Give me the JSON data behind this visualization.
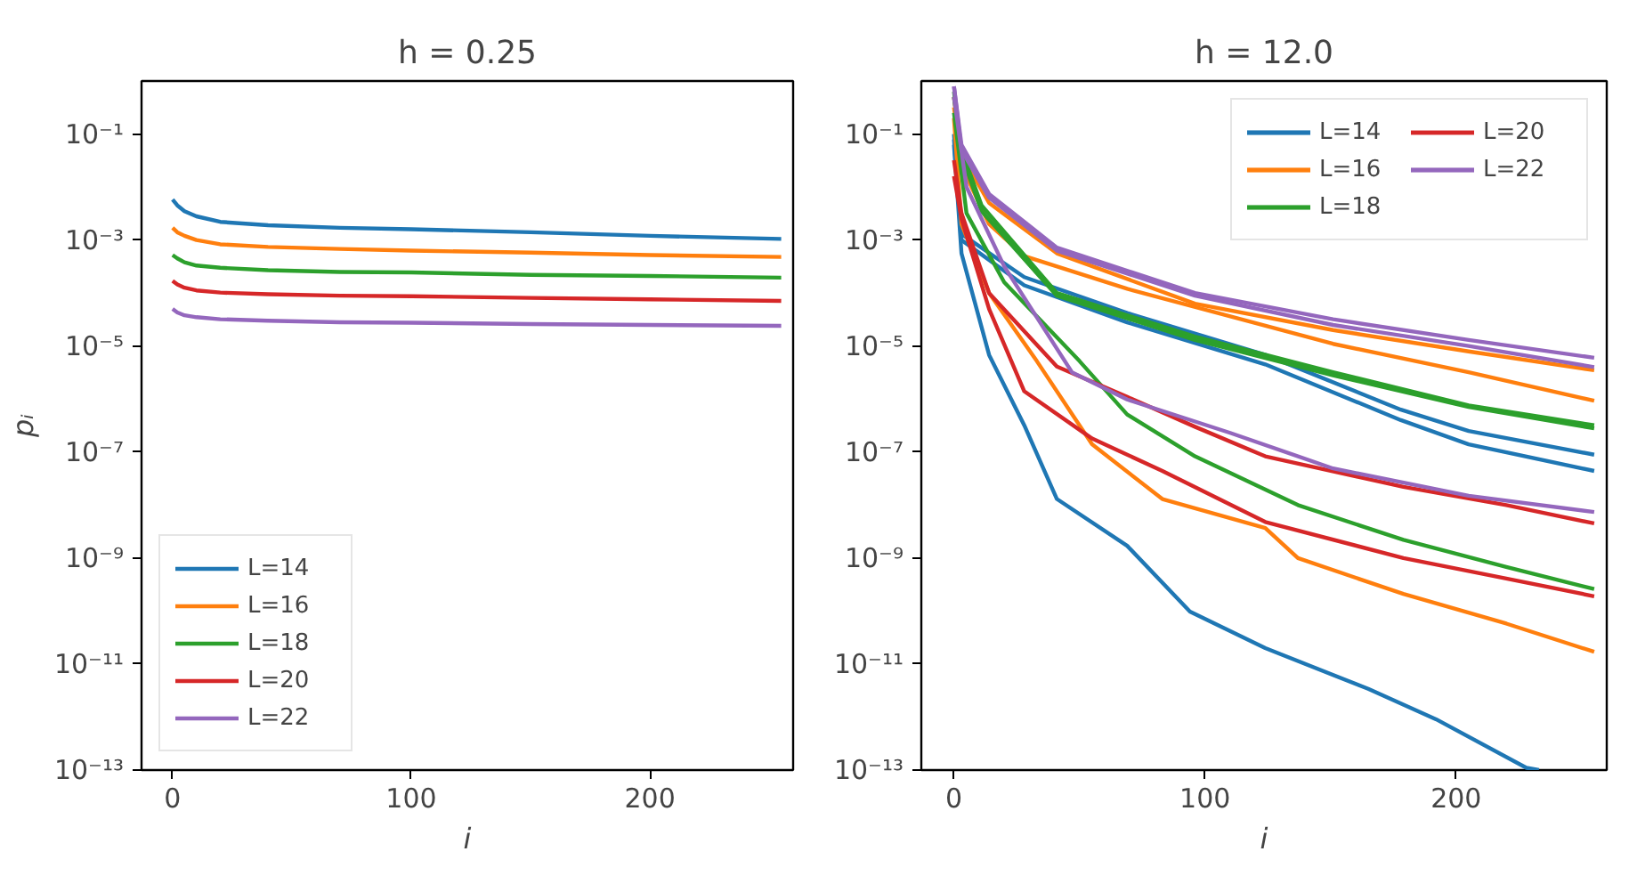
{
  "chart_data": [
    {
      "type": "line",
      "title": "h = 0.25",
      "xlabel": "i",
      "ylabel": "pᵢ",
      "log": "y",
      "grid": false,
      "legend": "bottom left",
      "xlim": [
        -13,
        260
      ],
      "xticks": [
        0,
        100,
        200
      ],
      "ylim": [
        1e-13,
        1
      ],
      "yticks": [
        {
          "value": 0.1,
          "label": "10⁻¹"
        },
        {
          "value": 0.001,
          "label": "10⁻³"
        },
        {
          "value": 1e-05,
          "label": "10⁻⁵"
        },
        {
          "value": 1e-07,
          "label": "10⁻⁷"
        },
        {
          "value": 1e-09,
          "label": "10⁻⁹"
        },
        {
          "value": 1e-11,
          "label": "10⁻¹¹"
        },
        {
          "value": 1e-13,
          "label": "10⁻¹³"
        }
      ],
      "x": [
        0,
        2,
        5,
        10,
        20,
        40,
        70,
        100,
        150,
        200,
        255
      ],
      "series": [
        {
          "name": "L=14",
          "color": "#1f77b4",
          "values": [
            0.0058,
            0.0045,
            0.0035,
            0.0028,
            0.0022,
            0.0019,
            0.0017,
            0.0016,
            0.0014,
            0.0012,
            0.00105
          ]
        },
        {
          "name": "L=16",
          "color": "#ff7f0e",
          "values": [
            0.0017,
            0.0014,
            0.0012,
            0.001,
            0.00083,
            0.00074,
            0.00068,
            0.00063,
            0.00058,
            0.00052,
            0.00048
          ]
        },
        {
          "name": "L=18",
          "color": "#2ca02c",
          "values": [
            0.00052,
            0.00045,
            0.00038,
            0.00033,
            0.0003,
            0.00027,
            0.00025,
            0.000245,
            0.00022,
            0.00021,
            0.000195
          ]
        },
        {
          "name": "L=20",
          "color": "#d62728",
          "values": [
            0.00017,
            0.000145,
            0.000126,
            0.000112,
            0.000102,
            9.5e-05,
            8.9e-05,
            8.7e-05,
            8.1e-05,
            7.6e-05,
            7.1e-05
          ]
        },
        {
          "name": "L=22",
          "color": "#9467bd",
          "values": [
            5e-05,
            4.3e-05,
            3.8e-05,
            3.5e-05,
            3.2e-05,
            3e-05,
            2.8e-05,
            2.75e-05,
            2.6e-05,
            2.5e-05,
            2.4e-05
          ]
        }
      ]
    },
    {
      "type": "line",
      "title": "h = 12.0",
      "xlabel": "i",
      "log": "y",
      "grid": false,
      "legend": "top right",
      "xlim": [
        -13,
        260
      ],
      "xticks": [
        0,
        100,
        200
      ],
      "ylim": [
        1e-13,
        1
      ],
      "yticks": [
        {
          "value": 0.1,
          "label": "10⁻¹"
        },
        {
          "value": 0.001,
          "label": "10⁻³"
        },
        {
          "value": 1e-05,
          "label": "10⁻⁵"
        },
        {
          "value": 1e-07,
          "label": "10⁻⁷"
        },
        {
          "value": 1e-09,
          "label": "10⁻⁹"
        },
        {
          "value": 1e-11,
          "label": "10⁻¹¹"
        },
        {
          "value": 1e-13,
          "label": "10⁻¹³"
        }
      ],
      "series": [
        {
          "name": "L=14",
          "color": "#1f77b4",
          "x": [
            0,
            3,
            28,
            69,
            124,
            178,
            205,
            255
          ],
          "values": [
            0.1,
            0.0013,
            0.0002,
            4.2e-05,
            6.8e-06,
            6.3e-07,
            2.5e-07,
            8.9e-08
          ]
        },
        {
          "name": "L=14",
          "color": "#1f77b4",
          "x": [
            0,
            3,
            28,
            69,
            124,
            178,
            205,
            255
          ],
          "values": [
            0.079,
            0.001,
            0.00014,
            2.8e-05,
            4.5e-06,
            4e-07,
            1.4e-07,
            4.4e-08
          ]
        },
        {
          "name": "L=14",
          "color": "#1f77b4",
          "x": [
            0,
            3,
            14,
            28,
            41,
            69,
            94,
            124,
            165,
            192,
            228,
            233
          ],
          "values": [
            0.063,
            0.00056,
            6.8e-06,
            3.2e-07,
            1.3e-08,
            1.7e-09,
            9.8e-11,
            2e-11,
            3.4e-12,
            9.1e-13,
            1.1e-13,
            1e-13
          ]
        },
        {
          "name": "L=16",
          "color": "#ff7f0e",
          "x": [
            0,
            3,
            14,
            41,
            96,
            151,
            205,
            255
          ],
          "values": [
            0.5,
            0.04,
            0.005,
            0.00056,
            6.3e-05,
            2e-05,
            7.9e-06,
            3.5e-06
          ]
        },
        {
          "name": "L=16",
          "color": "#ff7f0e",
          "x": [
            0,
            3,
            14,
            28,
            69,
            151,
            205,
            255
          ],
          "values": [
            0.32,
            0.025,
            0.002,
            0.0005,
            0.00012,
            1.1e-05,
            3.2e-06,
            9.3e-07
          ]
        },
        {
          "name": "L=16",
          "color": "#ff7f0e",
          "x": [
            0,
            3,
            14,
            33,
            55,
            83,
            124,
            137,
            179,
            220,
            255
          ],
          "values": [
            0.2,
            0.002,
            0.0001,
            5.2e-06,
            1.4e-07,
            1.3e-08,
            3.7e-09,
            1e-09,
            2.1e-10,
            5.8e-11,
            1.7e-11
          ]
        },
        {
          "name": "L=18",
          "color": "#2ca02c",
          "x": [
            0,
            3,
            11,
            41,
            96,
            151,
            205,
            255
          ],
          "values": [
            0.63,
            0.05,
            0.0045,
            0.0001,
            1.5e-05,
            3.2e-06,
            7.6e-07,
            3.2e-07
          ]
        },
        {
          "name": "L=18",
          "color": "#2ca02c",
          "x": [
            0,
            3,
            11,
            41,
            96,
            151,
            205,
            255
          ],
          "values": [
            0.5,
            0.04,
            0.0035,
            8.9e-05,
            1.3e-05,
            2.8e-06,
            7.1e-07,
            2.8e-07
          ]
        },
        {
          "name": "L=18",
          "color": "#2ca02c",
          "x": [
            0,
            5,
            20,
            50,
            69,
            96,
            137,
            179,
            220,
            255
          ],
          "values": [
            0.25,
            0.0032,
            0.00016,
            5.2e-06,
            5.1e-07,
            8.3e-08,
            1e-08,
            2.2e-09,
            6.8e-10,
            2.6e-10
          ]
        },
        {
          "name": "L=20",
          "color": "#d62728",
          "x": [
            0,
            3,
            14,
            41,
            69,
            96,
            124,
            179,
            220,
            255
          ],
          "values": [
            0.032,
            0.0032,
            0.0001,
            4.1e-06,
            1.1e-06,
            3e-07,
            8.3e-08,
            2.2e-08,
            1e-08,
            4.5e-09
          ]
        },
        {
          "name": "L=20",
          "color": "#d62728",
          "x": [
            0,
            3,
            14,
            28,
            55,
            83,
            124,
            179,
            220,
            255
          ],
          "values": [
            0.016,
            0.0025,
            5e-05,
            1.4e-06,
            1.8e-07,
            4.4e-08,
            4.8e-09,
            1e-09,
            4.1e-10,
            1.9e-10
          ]
        },
        {
          "name": "L=22",
          "color": "#9467bd",
          "x": [
            0,
            3,
            14,
            41,
            96,
            151,
            205,
            255
          ],
          "values": [
            0.79,
            0.063,
            0.0074,
            0.00072,
            0.0001,
            3.2e-05,
            1.3e-05,
            6e-06
          ]
        },
        {
          "name": "L=22",
          "color": "#9467bd",
          "x": [
            0,
            3,
            14,
            41,
            96,
            151,
            205,
            255
          ],
          "values": [
            0.79,
            0.05,
            0.0063,
            0.00063,
            8.9e-05,
            2.5e-05,
            1e-05,
            4e-06
          ]
        },
        {
          "name": "L=22",
          "color": "#9467bd",
          "x": [
            0,
            5,
            20,
            47,
            69,
            110,
            151,
            205,
            255
          ],
          "values": [
            0.5,
            0.01,
            0.00032,
            3.2e-06,
            9.8e-07,
            2.3e-07,
            4.9e-08,
            1.5e-08,
            7.4e-09
          ]
        }
      ]
    }
  ]
}
